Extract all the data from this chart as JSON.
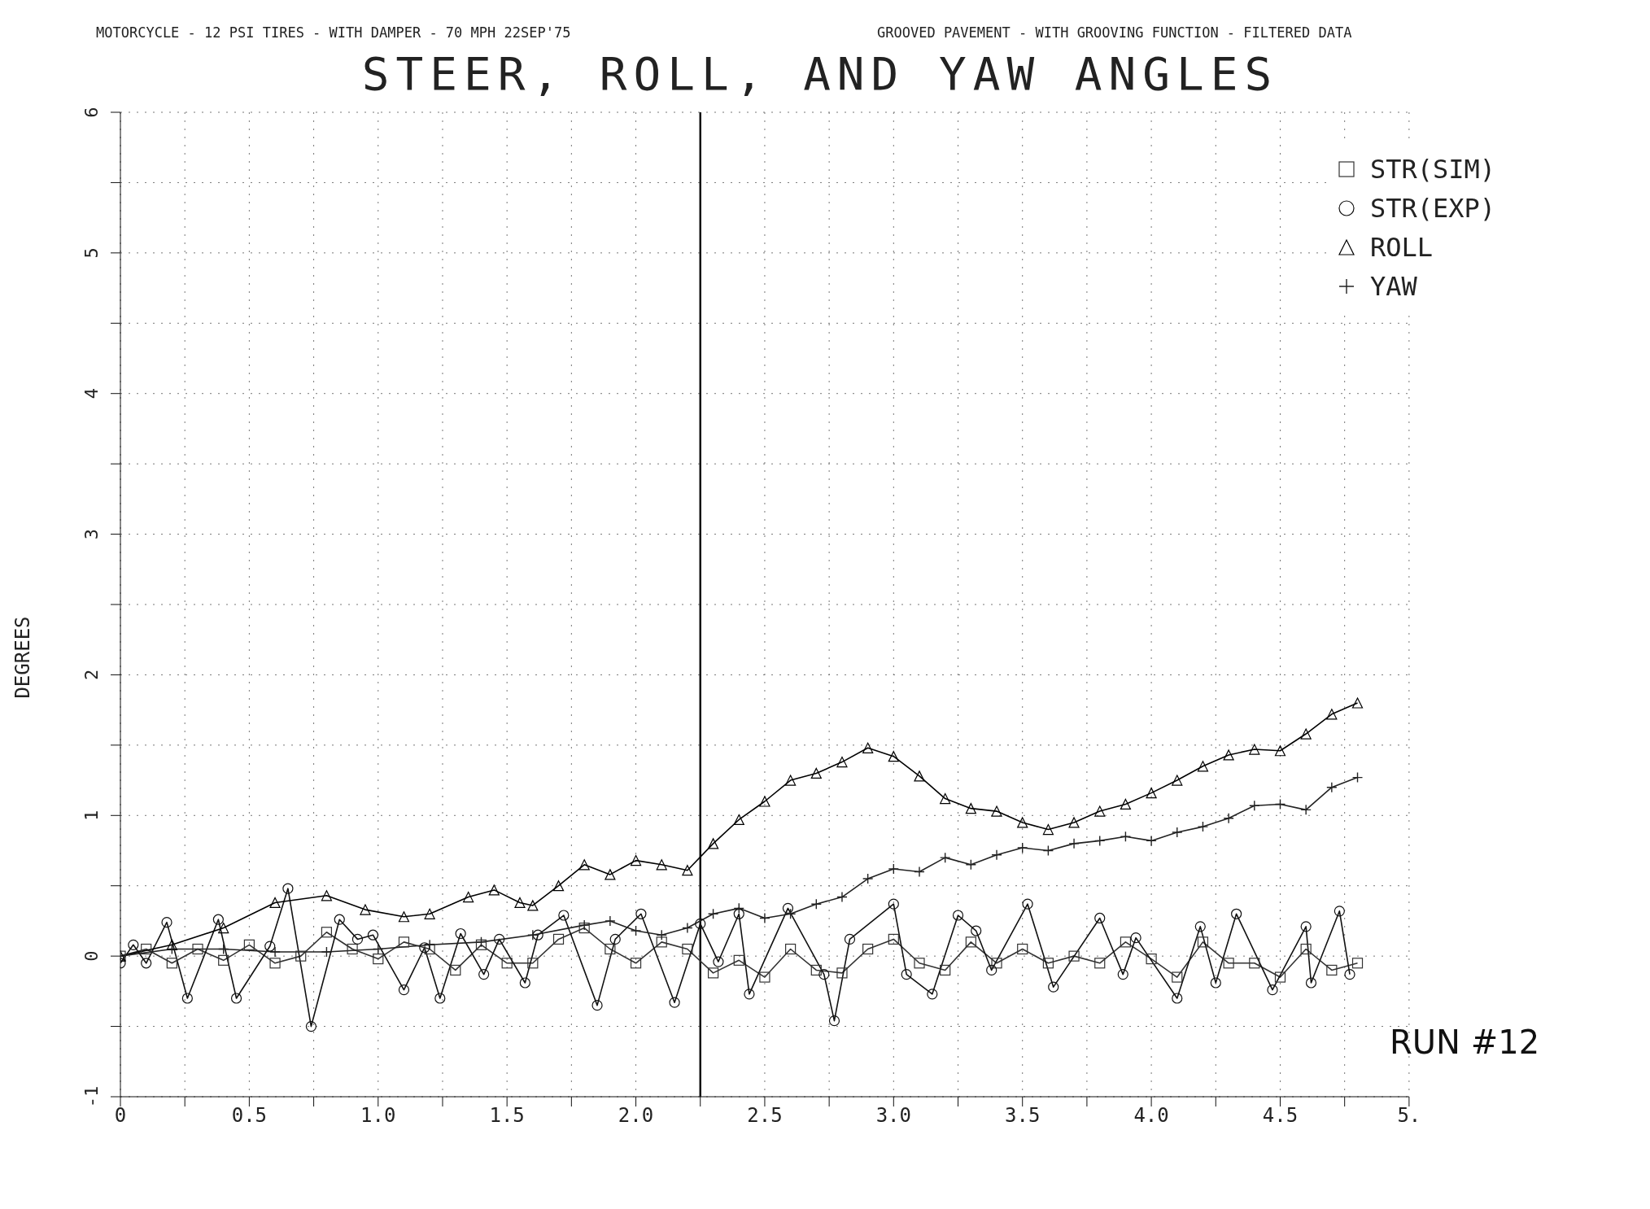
{
  "chart_data": {
    "type": "line",
    "title": "STEER, ROLL, AND YAW ANGLES",
    "subtitle": "MOTORCYCLE - 12 PSI TIRES - WITH DAMPER - 70 MPH 22SEP'75",
    "annotations": [
      "GROOVED PAVEMENT - WITH GROOVING FUNCTION - FILTERED DATA",
      "RUN #12"
    ],
    "ylabel": "DEGREES",
    "xlim": [
      0,
      5
    ],
    "ylim": [
      -1,
      6
    ],
    "xticks": [
      0,
      {
        "value": 0.25,
        "label": null
      },
      0.5,
      {
        "value": 0.75,
        "label": null
      },
      {
        "value": 1,
        "label": "1.0"
      },
      {
        "value": 1.25,
        "label": null
      },
      1.5,
      {
        "value": 1.75,
        "label": null
      },
      {
        "value": 2,
        "label": "2.0"
      },
      {
        "value": 2.25,
        "label": null
      },
      2.5,
      {
        "value": 2.75,
        "label": null
      },
      {
        "value": 3,
        "label": "3.0"
      },
      {
        "value": 3.25,
        "label": null
      },
      3.5,
      {
        "value": 3.75,
        "label": null
      },
      {
        "value": 4,
        "label": "4.0"
      },
      {
        "value": 4.25,
        "label": null
      },
      4.5,
      {
        "value": 4.75,
        "label": null
      },
      {
        "value": 5,
        "label": "5."
      }
    ],
    "yticks": [
      -1,
      {
        "value": -0.5,
        "label": null
      },
      0,
      {
        "value": 0.5,
        "label": null
      },
      1,
      {
        "value": 1.5,
        "label": null
      },
      2,
      {
        "value": 2.5,
        "label": null
      },
      3,
      {
        "value": 3.5,
        "label": null
      },
      4,
      {
        "value": 4.5,
        "label": null
      },
      5,
      {
        "value": 5.5,
        "label": null
      },
      6
    ],
    "grid": true,
    "legend": "top right",
    "line_style": "solid",
    "ref_lines": [
      {
        "axis": "x",
        "value": 2.25,
        "color": "#111111"
      }
    ],
    "series": [
      {
        "name": "STR(SIM)",
        "color": "#333333",
        "marker": "square",
        "x": [
          0,
          0.1,
          0.2,
          0.3,
          0.4,
          0.5,
          0.6,
          0.7,
          0.8,
          0.9,
          1.0,
          1.1,
          1.2,
          1.3,
          1.4,
          1.5,
          1.6,
          1.7,
          1.8,
          1.9,
          2.0,
          2.1,
          2.2,
          2.3,
          2.4,
          2.5,
          2.6,
          2.7,
          2.8,
          2.9,
          3.0,
          3.1,
          3.2,
          3.3,
          3.4,
          3.5,
          3.6,
          3.7,
          3.8,
          3.9,
          4.0,
          4.1,
          4.2,
          4.3,
          4.4,
          4.5,
          4.6,
          4.7,
          4.8
        ],
        "values": [
          0,
          0.05,
          -0.05,
          0.05,
          -0.03,
          0.08,
          -0.05,
          0,
          0.17,
          0.05,
          -0.02,
          0.1,
          0.05,
          -0.1,
          0.08,
          -0.05,
          -0.05,
          0.12,
          0.2,
          0.05,
          -0.05,
          0.1,
          0.05,
          -0.12,
          -0.03,
          -0.15,
          0.05,
          -0.1,
          -0.12,
          0.05,
          0.12,
          -0.05,
          -0.1,
          0.1,
          -0.05,
          0.05,
          -0.05,
          0,
          -0.05,
          0.1,
          -0.02,
          -0.15,
          0.1,
          -0.05,
          -0.05,
          -0.15,
          0.05,
          -0.1,
          -0.05
        ]
      },
      {
        "name": "STR(EXP)",
        "color": "#111111",
        "marker": "circle",
        "x": [
          0,
          0.05,
          0.1,
          0.18,
          0.26,
          0.38,
          0.45,
          0.58,
          0.65,
          0.74,
          0.85,
          0.92,
          0.98,
          1.1,
          1.18,
          1.24,
          1.32,
          1.41,
          1.47,
          1.57,
          1.62,
          1.72,
          1.85,
          1.92,
          2.02,
          2.15,
          2.25,
          2.32,
          2.4,
          2.44,
          2.59,
          2.73,
          2.77,
          2.83,
          3.0,
          3.05,
          3.15,
          3.25,
          3.32,
          3.38,
          3.52,
          3.62,
          3.8,
          3.89,
          3.94,
          4.1,
          4.19,
          4.25,
          4.33,
          4.47,
          4.6,
          4.62,
          4.73,
          4.77
        ],
        "values": [
          -0.05,
          0.08,
          -0.05,
          0.24,
          -0.3,
          0.26,
          -0.3,
          0.07,
          0.48,
          -0.5,
          0.26,
          0.12,
          0.15,
          -0.24,
          0.06,
          -0.3,
          0.16,
          -0.13,
          0.12,
          -0.19,
          0.15,
          0.29,
          -0.35,
          0.12,
          0.3,
          -0.33,
          0.23,
          -0.04,
          0.3,
          -0.27,
          0.34,
          -0.13,
          -0.46,
          0.12,
          0.37,
          -0.13,
          -0.27,
          0.29,
          0.18,
          -0.1,
          0.37,
          -0.22,
          0.27,
          -0.13,
          0.13,
          -0.3,
          0.21,
          -0.19,
          0.3,
          -0.24,
          0.21,
          -0.19,
          0.32,
          -0.13
        ]
      },
      {
        "name": "ROLL",
        "color": "#000000",
        "marker": "triangle",
        "x": [
          0,
          0.2,
          0.4,
          0.6,
          0.8,
          0.95,
          1.1,
          1.2,
          1.35,
          1.45,
          1.55,
          1.6,
          1.7,
          1.8,
          1.9,
          2.0,
          2.1,
          2.2,
          2.3,
          2.4,
          2.5,
          2.6,
          2.7,
          2.8,
          2.9,
          3.0,
          3.1,
          3.2,
          3.3,
          3.4,
          3.5,
          3.6,
          3.7,
          3.8,
          3.9,
          4.0,
          4.1,
          4.2,
          4.3,
          4.4,
          4.5,
          4.6,
          4.7,
          4.8
        ],
        "values": [
          0,
          0.08,
          0.2,
          0.38,
          0.43,
          0.33,
          0.28,
          0.3,
          0.42,
          0.47,
          0.38,
          0.36,
          0.5,
          0.65,
          0.58,
          0.68,
          0.65,
          0.61,
          0.8,
          0.97,
          1.1,
          1.25,
          1.3,
          1.38,
          1.48,
          1.42,
          1.28,
          1.12,
          1.05,
          1.03,
          0.95,
          0.9,
          0.95,
          1.03,
          1.08,
          1.16,
          1.25,
          1.35,
          1.43,
          1.47,
          1.46,
          1.58,
          1.72,
          1.8
        ]
      },
      {
        "name": "YAW",
        "color": "#222222",
        "marker": "cross",
        "x": [
          0,
          0.2,
          0.4,
          0.6,
          0.8,
          1.0,
          1.2,
          1.4,
          1.6,
          1.8,
          1.9,
          2.0,
          2.1,
          2.2,
          2.3,
          2.4,
          2.5,
          2.6,
          2.7,
          2.8,
          2.9,
          3.0,
          3.1,
          3.2,
          3.3,
          3.4,
          3.5,
          3.6,
          3.7,
          3.8,
          3.9,
          4.0,
          4.1,
          4.2,
          4.3,
          4.4,
          4.5,
          4.6,
          4.7,
          4.8
        ],
        "values": [
          0,
          0.05,
          0.05,
          0.03,
          0.03,
          0.05,
          0.08,
          0.1,
          0.15,
          0.22,
          0.25,
          0.18,
          0.15,
          0.2,
          0.3,
          0.34,
          0.27,
          0.3,
          0.37,
          0.42,
          0.55,
          0.62,
          0.6,
          0.7,
          0.65,
          0.72,
          0.77,
          0.75,
          0.8,
          0.82,
          0.85,
          0.82,
          0.88,
          0.92,
          0.98,
          1.07,
          1.08,
          1.04,
          1.2,
          1.27
        ]
      }
    ]
  }
}
